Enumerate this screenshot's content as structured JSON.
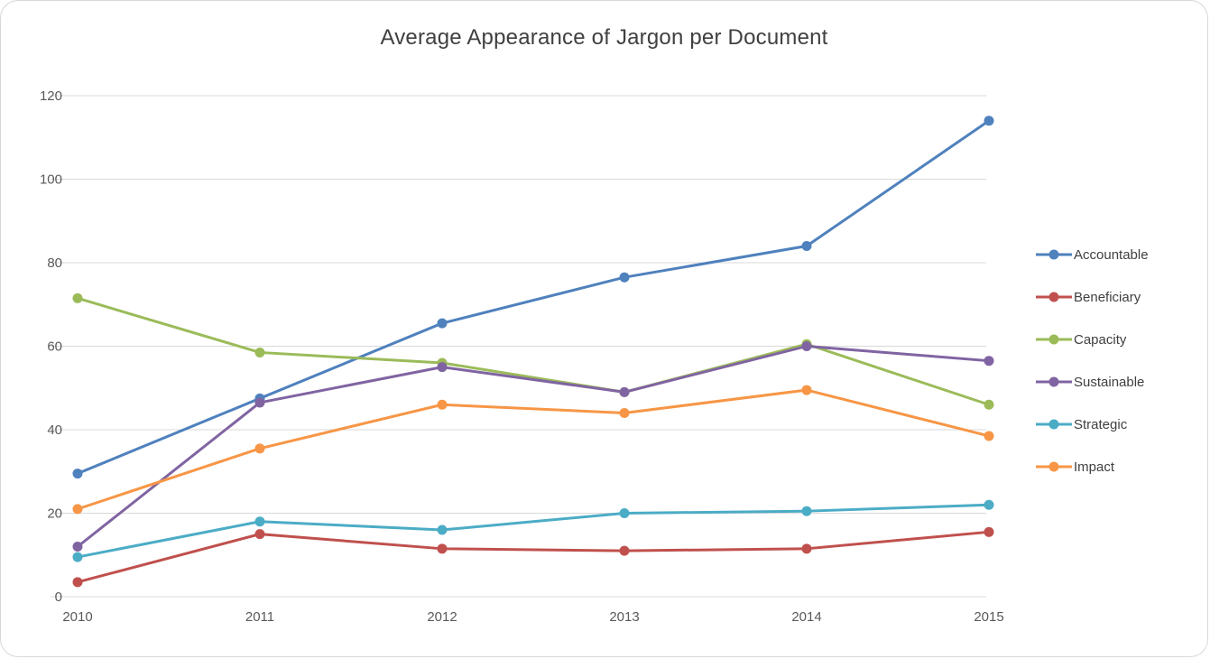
{
  "chart_data": {
    "type": "line",
    "title": "Average Appearance of Jargon per Document",
    "categories": [
      "2010",
      "2011",
      "2012",
      "2013",
      "2014",
      "2015"
    ],
    "xlabel": "",
    "ylabel": "",
    "ylim": [
      0,
      120
    ],
    "ytick": 20,
    "grid": true,
    "legend_position": "right",
    "series": [
      {
        "name": "Accountable",
        "color": "#4F81BD",
        "values": [
          29.5,
          47.5,
          65.5,
          76.5,
          84,
          114
        ]
      },
      {
        "name": "Beneficiary",
        "color": "#C0504D",
        "values": [
          3.5,
          15,
          11.5,
          11,
          11.5,
          15.5
        ]
      },
      {
        "name": "Capacity",
        "color": "#9BBB59",
        "values": [
          71.5,
          58.5,
          56,
          49,
          60.5,
          46
        ]
      },
      {
        "name": "Sustainable",
        "color": "#8064A2",
        "values": [
          12,
          46.5,
          55,
          49,
          60,
          56.5
        ]
      },
      {
        "name": "Strategic",
        "color": "#4BACC6",
        "values": [
          9.5,
          18,
          16,
          20,
          20.5,
          22
        ]
      },
      {
        "name": "Impact",
        "color": "#F79646",
        "values": [
          21,
          35.5,
          46,
          44,
          49.5,
          38.5
        ]
      }
    ],
    "axis_text_color": "#595959",
    "gridline_color": "#D9D9D9",
    "title_color": "#404040"
  }
}
